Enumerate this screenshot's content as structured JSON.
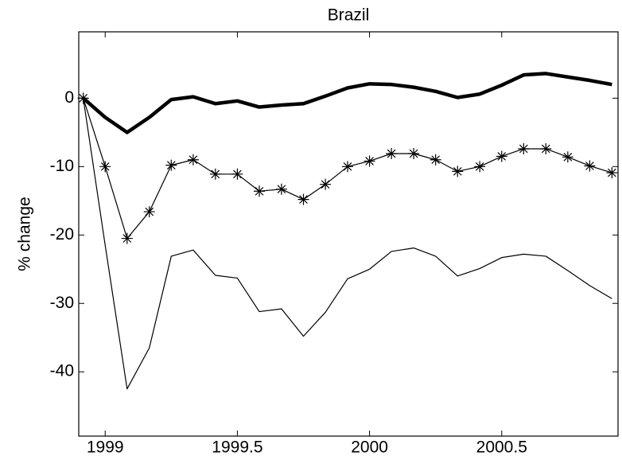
{
  "chart_data": {
    "type": "line",
    "title": "Brazil",
    "y_label": "% change",
    "x": [
      1998.917,
      1999.0,
      1999.083,
      1999.167,
      1999.25,
      1999.333,
      1999.417,
      1999.5,
      1999.583,
      1999.667,
      1999.75,
      1999.833,
      1999.917,
      2000.0,
      2000.083,
      2000.167,
      2000.25,
      2000.333,
      2000.417,
      2000.5,
      2000.583,
      2000.667,
      2000.75,
      2000.833,
      2000.917
    ],
    "series": [
      {
        "color": "#000000",
        "line_width": 4.5,
        "marker": "none",
        "values": [
          0,
          -2.8,
          -5.0,
          -2.8,
          -0.2,
          0.2,
          -0.8,
          -0.4,
          -1.3,
          -1.0,
          -0.8,
          0.3,
          1.5,
          2.1,
          2.0,
          1.6,
          1.0,
          0.1,
          0.6,
          1.9,
          3.4,
          3.6,
          3.1,
          2.6,
          2.0
        ]
      },
      {
        "color": "#000000",
        "line_width": 1.2,
        "marker": "asterisk",
        "values": [
          0,
          -10.0,
          -20.5,
          -16.6,
          -9.8,
          -9.0,
          -11.1,
          -11.1,
          -13.6,
          -13.3,
          -14.8,
          -12.6,
          -10.0,
          -9.2,
          -8.1,
          -8.1,
          -9.0,
          -10.7,
          -10.0,
          -8.5,
          -7.4,
          -7.4,
          -8.6,
          -9.9,
          -10.9
        ]
      },
      {
        "color": "#000000",
        "line_width": 1.2,
        "marker": "none",
        "values": [
          0,
          -21.5,
          -42.5,
          -36.5,
          -23.1,
          -22.2,
          -25.9,
          -26.3,
          -31.2,
          -30.8,
          -34.8,
          -31.3,
          -26.4,
          -25.0,
          -22.4,
          -21.9,
          -23.1,
          -26.0,
          -24.9,
          -23.3,
          -22.8,
          -23.1,
          -25.2,
          -27.4,
          -29.3
        ]
      }
    ],
    "xlim": [
      1998.9,
      2000.94
    ],
    "xticks": [
      1999,
      1999.5,
      2000,
      2000.5
    ],
    "ylim": [
      -49.4,
      9.7
    ],
    "yticks": [
      0,
      -10,
      -20,
      -30,
      -40
    ],
    "grid": false
  }
}
